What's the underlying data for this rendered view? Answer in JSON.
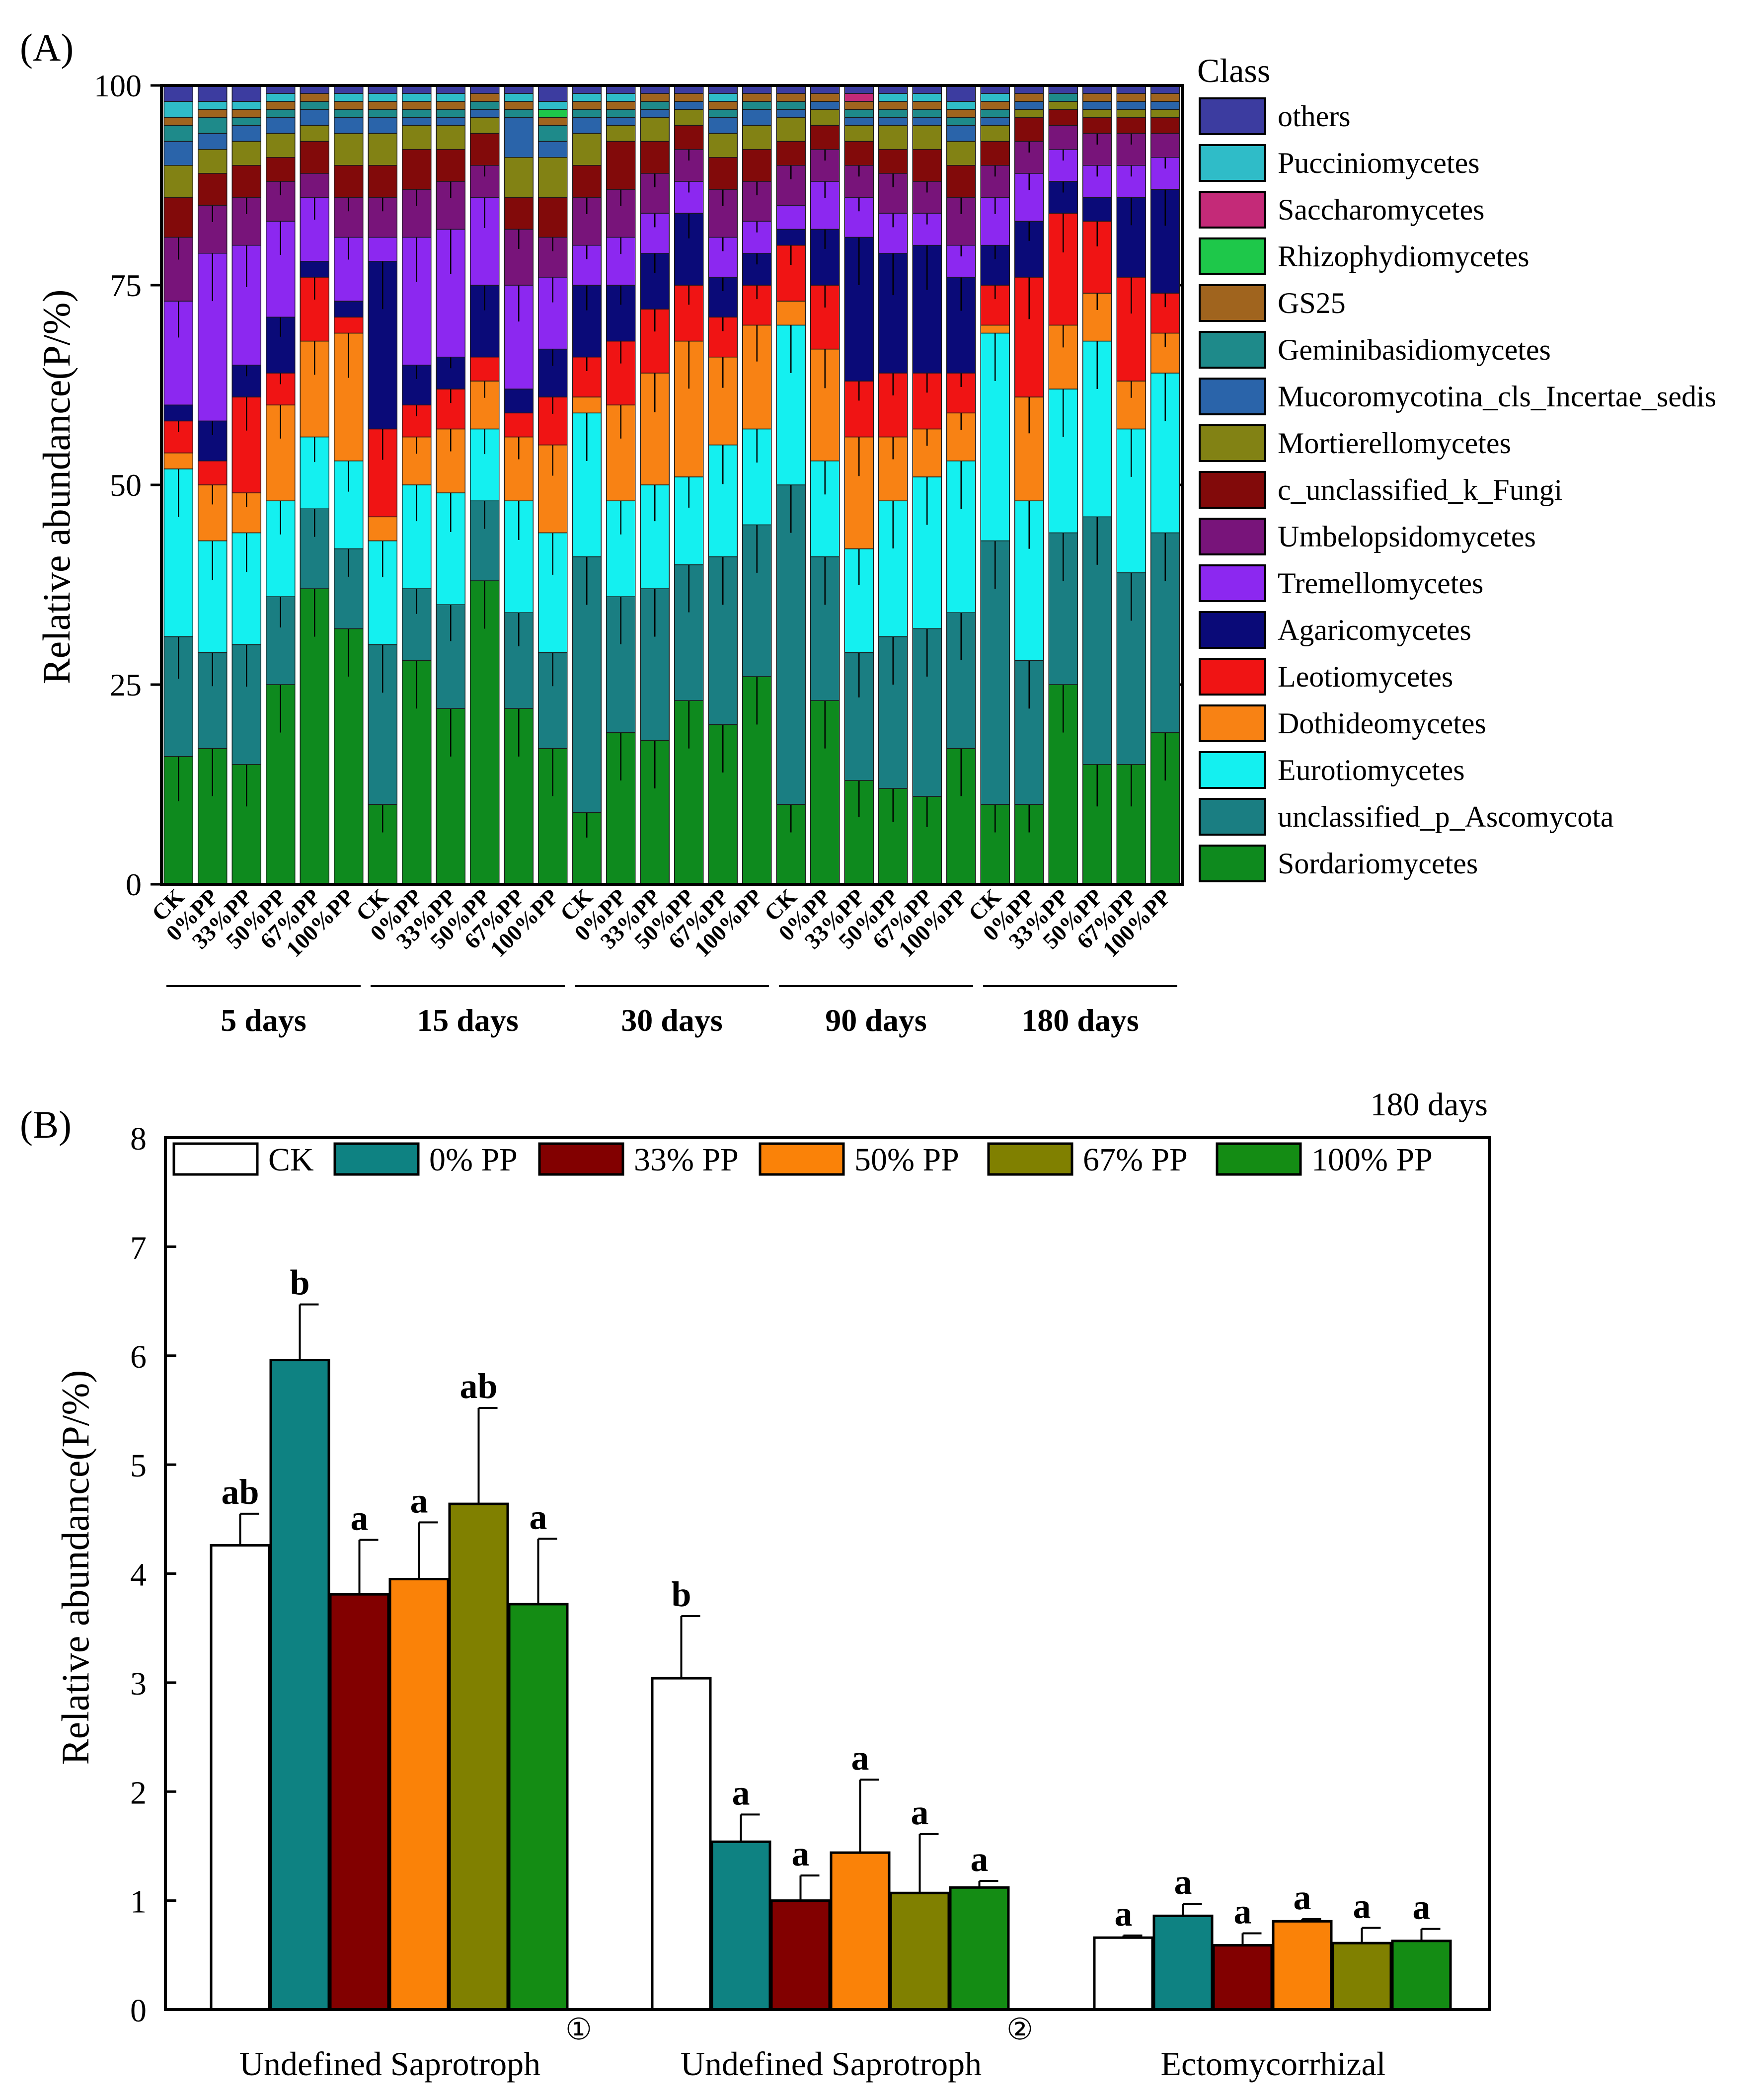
{
  "panel_a_label": "(A)",
  "panel_b_label": "(B)",
  "chart_data": [
    {
      "type": "stacked-bar",
      "title": "",
      "ylabel": "Relative abundance(P/%)",
      "ylim": [
        0,
        100
      ],
      "yticks": [
        "0",
        "25",
        "50",
        "75",
        "100"
      ],
      "legend_title": "Class",
      "legend": [
        {
          "name": "others",
          "color": "#3c3ca0"
        },
        {
          "name": "Pucciniomycetes",
          "color": "#2fbcc8"
        },
        {
          "name": "Saccharomycetes",
          "color": "#c42a78"
        },
        {
          "name": "Rhizophydiomycetes",
          "color": "#1ec84a"
        },
        {
          "name": "GS25",
          "color": "#a0641e"
        },
        {
          "name": "Geminibasidiomycetes",
          "color": "#1e8a8a"
        },
        {
          "name": "Mucoromycotina_cls_Incertae_sedis",
          "color": "#2a64aa"
        },
        {
          "name": "Mortierellomycetes",
          "color": "#828214"
        },
        {
          "name": "c_unclassified_k_Fungi",
          "color": "#820a0a"
        },
        {
          "name": "Umbelopsidomycetes",
          "color": "#78147a"
        },
        {
          "name": "Tremellomycetes",
          "color": "#8c28f0"
        },
        {
          "name": "Agaricomycetes",
          "color": "#0a0a78"
        },
        {
          "name": "Leotiomycetes",
          "color": "#f01414"
        },
        {
          "name": "Dothideomycetes",
          "color": "#f88214"
        },
        {
          "name": "Eurotiomycetes",
          "color": "#14f0f0"
        },
        {
          "name": "unclassified_p_Ascomycota",
          "color": "#1a7e82"
        },
        {
          "name": "Sordariomycetes",
          "color": "#0e8a1e"
        }
      ],
      "bar_labels": [
        "CK",
        "0%PP",
        "33%PP",
        "50%PP",
        "67%PP",
        "100%PP",
        "CK",
        "0%PP",
        "33%PP",
        "50%PP",
        "67%PP",
        "100%PP",
        "CK",
        "0%PP",
        "33%PP",
        "50%PP",
        "67%PP",
        "100%PP",
        "CK",
        "0%PP",
        "33%PP",
        "50%PP",
        "67%PP",
        "100%PP",
        "CK",
        "0%PP",
        "33%PP",
        "50%PP",
        "67%PP",
        "100%PP"
      ],
      "groups": [
        "5 days",
        "15 days",
        "30 days",
        "90 days",
        "180 days"
      ],
      "series_order_bottom_to_top": [
        "Sordariomycetes",
        "unclassified_p_Ascomycota",
        "Eurotiomycetes",
        "Dothideomycetes",
        "Leotiomycetes",
        "Agaricomycetes",
        "Tremellomycetes",
        "Umbelopsidomycetes",
        "c_unclassified_k_Fungi",
        "Mortierellomycetes",
        "Mucoromycotina_cls_Incertae_sedis",
        "Geminibasidiomycetes",
        "GS25",
        "Rhizophydiomycetes",
        "Saccharomycetes",
        "Pucciniomycetes",
        "others"
      ],
      "cumulative_tops": [
        [
          16,
          31,
          52,
          54,
          58,
          60,
          73,
          81,
          86,
          90,
          93,
          95,
          96,
          96,
          96,
          98,
          100
        ],
        [
          17,
          29,
          43,
          50,
          53,
          58,
          79,
          85,
          89,
          92,
          94,
          96,
          97,
          97,
          97,
          98,
          100
        ],
        [
          15,
          30,
          44,
          49,
          61,
          65,
          80,
          86,
          90,
          93,
          95,
          96,
          97,
          97,
          97,
          98,
          100
        ],
        [
          25,
          36,
          48,
          60,
          64,
          71,
          83,
          88,
          91,
          94,
          96,
          97,
          98,
          98,
          98,
          99,
          100
        ],
        [
          37,
          47,
          56,
          68,
          76,
          78,
          86,
          89,
          93,
          95,
          97,
          98,
          99,
          99,
          99,
          99,
          100
        ],
        [
          32,
          42,
          53,
          69,
          71,
          73,
          81,
          86,
          90,
          94,
          96,
          97,
          98,
          98,
          98,
          99,
          100
        ],
        [
          10,
          30,
          43,
          46,
          57,
          78,
          81,
          86,
          90,
          94,
          96,
          97,
          98,
          98,
          98,
          99,
          100
        ],
        [
          28,
          37,
          50,
          56,
          60,
          65,
          81,
          87,
          92,
          95,
          96,
          97,
          98,
          98,
          98,
          99,
          100
        ],
        [
          22,
          35,
          49,
          57,
          62,
          66,
          82,
          88,
          92,
          95,
          96,
          97,
          98,
          98,
          98,
          99,
          100
        ],
        [
          38,
          48,
          57,
          63,
          66,
          75,
          86,
          90,
          94,
          96,
          97,
          98,
          99,
          99,
          99,
          99,
          100
        ],
        [
          22,
          34,
          48,
          56,
          59,
          62,
          75,
          82,
          86,
          91,
          96,
          97,
          98,
          98,
          98,
          99,
          100
        ],
        [
          17,
          29,
          44,
          55,
          61,
          67,
          76,
          81,
          86,
          91,
          93,
          95,
          96,
          97,
          97,
          98,
          100
        ],
        [
          9,
          41,
          59,
          61,
          66,
          75,
          80,
          86,
          90,
          94,
          96,
          97,
          98,
          98,
          98,
          99,
          100
        ],
        [
          19,
          36,
          48,
          60,
          68,
          75,
          81,
          87,
          93,
          95,
          96,
          97,
          98,
          98,
          98,
          99,
          100
        ],
        [
          18,
          37,
          50,
          64,
          72,
          79,
          84,
          89,
          93,
          96,
          97,
          98,
          99,
          99,
          99,
          99,
          100
        ],
        [
          23,
          40,
          51,
          68,
          75,
          84,
          88,
          92,
          95,
          97,
          98,
          98,
          99,
          99,
          99,
          99,
          100
        ],
        [
          20,
          41,
          55,
          66,
          71,
          76,
          81,
          87,
          91,
          94,
          96,
          97,
          98,
          98,
          98,
          99,
          100
        ],
        [
          26,
          45,
          57,
          70,
          75,
          79,
          83,
          88,
          92,
          95,
          97,
          98,
          99,
          99,
          99,
          99,
          100
        ],
        [
          10,
          50,
          70,
          73,
          80,
          82,
          85,
          90,
          93,
          96,
          97,
          98,
          99,
          99,
          99,
          99,
          100
        ],
        [
          23,
          41,
          53,
          67,
          75,
          82,
          88,
          92,
          95,
          97,
          98,
          98,
          99,
          99,
          99,
          99,
          100
        ],
        [
          13,
          29,
          42,
          56,
          63,
          81,
          86,
          90,
          93,
          95,
          96,
          97,
          98,
          98,
          99,
          99,
          100
        ],
        [
          12,
          31,
          48,
          56,
          64,
          79,
          84,
          89,
          92,
          95,
          96,
          97,
          98,
          98,
          98,
          99,
          100
        ],
        [
          11,
          32,
          51,
          57,
          64,
          80,
          84,
          88,
          92,
          95,
          96,
          97,
          98,
          98,
          98,
          99,
          100
        ],
        [
          17,
          34,
          53,
          59,
          64,
          76,
          80,
          86,
          90,
          93,
          95,
          96,
          97,
          97,
          97,
          98,
          100
        ],
        [
          10,
          43,
          69,
          70,
          75,
          80,
          86,
          90,
          93,
          95,
          96,
          97,
          98,
          98,
          98,
          99,
          100
        ],
        [
          10,
          28,
          48,
          61,
          76,
          83,
          89,
          93,
          96,
          97,
          98,
          98,
          99,
          99,
          99,
          99,
          100
        ],
        [
          25,
          44,
          62,
          70,
          84,
          88,
          92,
          95,
          97,
          98,
          98,
          99,
          99,
          99,
          99,
          99,
          100
        ],
        [
          15,
          46,
          68,
          74,
          83,
          86,
          90,
          94,
          96,
          97,
          98,
          98,
          99,
          99,
          99,
          99,
          100
        ],
        [
          15,
          39,
          57,
          63,
          76,
          86,
          90,
          94,
          96,
          97,
          98,
          98,
          99,
          99,
          99,
          99,
          100
        ],
        [
          19,
          44,
          64,
          69,
          74,
          87,
          91,
          94,
          96,
          97,
          98,
          98,
          99,
          99,
          99,
          99,
          100
        ]
      ]
    },
    {
      "type": "bar",
      "title": "180 days",
      "ylabel": "Relative abundance(P/%)",
      "ylim": [
        0,
        8
      ],
      "yticks": [
        "0",
        "1",
        "2",
        "3",
        "4",
        "5",
        "6",
        "7",
        "8"
      ],
      "categories": [
        "Undefined Saprotroph",
        "Undefined Saprotroph",
        "Ectomycorrhizal"
      ],
      "category_marks": [
        "①",
        "②",
        ""
      ],
      "series": [
        {
          "name": "CK",
          "color": "#ffffff",
          "values": [
            4.26,
            3.04,
            0.66
          ],
          "errors": [
            0.29,
            0.57,
            0.02
          ],
          "letters": [
            "ab",
            "b",
            "a"
          ]
        },
        {
          "name": "0% PP",
          "color": "#0e8282",
          "values": [
            5.96,
            1.54,
            0.86
          ],
          "errors": [
            0.51,
            0.25,
            0.11
          ],
          "letters": [
            "b",
            "a",
            "a"
          ]
        },
        {
          "name": "33% PP",
          "color": "#820000",
          "values": [
            3.81,
            1.0,
            0.59
          ],
          "errors": [
            0.5,
            0.23,
            0.11
          ],
          "letters": [
            "a",
            "a",
            "a"
          ]
        },
        {
          "name": "50% PP",
          "color": "#fa8208",
          "values": [
            3.95,
            1.44,
            0.81
          ],
          "errors": [
            0.52,
            0.67,
            0.02
          ],
          "letters": [
            "a",
            "a",
            "a"
          ]
        },
        {
          "name": "67% PP",
          "color": "#808000",
          "values": [
            4.64,
            1.07,
            0.61
          ],
          "errors": [
            0.88,
            0.54,
            0.14
          ],
          "letters": [
            "ab",
            "a",
            "a"
          ]
        },
        {
          "name": "100% PP",
          "color": "#148c14",
          "values": [
            3.72,
            1.12,
            0.63
          ],
          "errors": [
            0.6,
            0.06,
            0.11
          ],
          "letters": [
            "a",
            "a",
            "a"
          ]
        }
      ]
    }
  ]
}
